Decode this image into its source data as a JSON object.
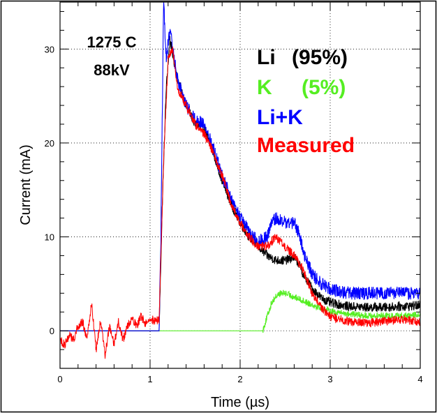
{
  "chart_data": {
    "type": "line",
    "xlabel": "Time (µs)",
    "ylabel": "Current (mA)",
    "xlim": [
      0,
      4
    ],
    "ylim": [
      -4,
      35
    ],
    "xticks": [
      "0",
      "1",
      "2",
      "3",
      "4"
    ],
    "yticks": [
      "0",
      "10",
      "20",
      "30"
    ],
    "annotations": [
      "1275 C",
      "88kV"
    ],
    "legend_placement": "top-right",
    "legend": [
      {
        "name": "Li",
        "pct": "(95%)",
        "color": "#000000"
      },
      {
        "name": "K",
        "pct": "(5%)",
        "color": "#55ee22"
      },
      {
        "name": "Li+K",
        "pct": "",
        "color": "#0000ff"
      },
      {
        "name": "Measured",
        "pct": "",
        "color": "#ff0000"
      }
    ],
    "series": [
      {
        "name": "Li",
        "color": "#000000",
        "x": [
          0,
          1.1,
          1.14,
          1.18,
          1.22,
          1.3,
          1.4,
          1.5,
          1.6,
          1.7,
          1.8,
          1.9,
          2.0,
          2.1,
          2.2,
          2.3,
          2.4,
          2.5,
          2.6,
          2.65,
          2.7,
          2.8,
          2.9,
          3.0,
          3.2,
          3.4,
          3.6,
          3.8,
          4.0
        ],
        "y": [
          0,
          0,
          15,
          26,
          31,
          27,
          24,
          22,
          21.5,
          19,
          16,
          13.5,
          11.5,
          10,
          9,
          8,
          7.5,
          7.5,
          7.8,
          7.2,
          6,
          4.5,
          3.5,
          3,
          2.6,
          2.5,
          2.5,
          2.6,
          2.7
        ],
        "noise": 0.5
      },
      {
        "name": "K",
        "color": "#55ee22",
        "x": [
          0,
          2.25,
          2.3,
          2.35,
          2.4,
          2.45,
          2.5,
          2.55,
          2.6,
          2.7,
          2.8,
          2.9,
          3.0,
          3.2,
          3.4,
          3.6,
          3.8,
          4.0
        ],
        "y": [
          0,
          0,
          1.5,
          3,
          3.7,
          4,
          4,
          3.8,
          3.6,
          3.2,
          2.8,
          2.4,
          2.1,
          1.8,
          1.6,
          1.6,
          1.6,
          1.7
        ],
        "noise": 0.35
      },
      {
        "name": "Li+K",
        "color": "#0000ff",
        "x": [
          0,
          1.1,
          1.12,
          1.15,
          1.18,
          1.22,
          1.3,
          1.4,
          1.5,
          1.6,
          1.7,
          1.8,
          1.9,
          2.0,
          2.1,
          2.2,
          2.3,
          2.35,
          2.4,
          2.5,
          2.6,
          2.65,
          2.7,
          2.8,
          2.9,
          3.0,
          3.2,
          3.4,
          3.6,
          3.8,
          4.0
        ],
        "y": [
          0,
          0,
          10,
          35,
          29,
          32,
          27,
          24,
          22.5,
          22,
          19.5,
          16.5,
          14,
          12,
          10.5,
          9.5,
          10,
          11.5,
          12,
          11.5,
          11.5,
          10.5,
          8.5,
          6,
          5,
          4.5,
          4,
          4,
          4,
          4,
          4
        ],
        "noise": 0.7
      },
      {
        "name": "Measured",
        "color": "#ff0000",
        "x": [
          0,
          0.05,
          0.1,
          0.15,
          0.2,
          0.25,
          0.3,
          0.35,
          0.4,
          0.45,
          0.5,
          0.55,
          0.6,
          0.65,
          0.7,
          0.75,
          0.8,
          0.85,
          0.9,
          0.95,
          1.0,
          1.05,
          1.1,
          1.15,
          1.2,
          1.25,
          1.3,
          1.4,
          1.5,
          1.6,
          1.7,
          1.8,
          1.9,
          2.0,
          2.1,
          2.2,
          2.3,
          2.35,
          2.4,
          2.5,
          2.6,
          2.7,
          2.8,
          2.9,
          3.0,
          3.2,
          3.4,
          3.6,
          3.8,
          4.0
        ],
        "y": [
          -1,
          -1.5,
          -0.5,
          -1,
          0.5,
          1,
          -1,
          3,
          -2,
          1,
          -2.5,
          0.5,
          -1.5,
          1,
          -1,
          0.5,
          1.5,
          0.5,
          1.5,
          0.8,
          1.5,
          1,
          1.2,
          18,
          29,
          30,
          26,
          24,
          22,
          21,
          19,
          16.5,
          13.5,
          11.5,
          10,
          9,
          9,
          9.5,
          10,
          9,
          8,
          6.5,
          4,
          2.5,
          1.5,
          1,
          0.8,
          1,
          1.2,
          1
        ],
        "noise": 0.8
      }
    ]
  }
}
